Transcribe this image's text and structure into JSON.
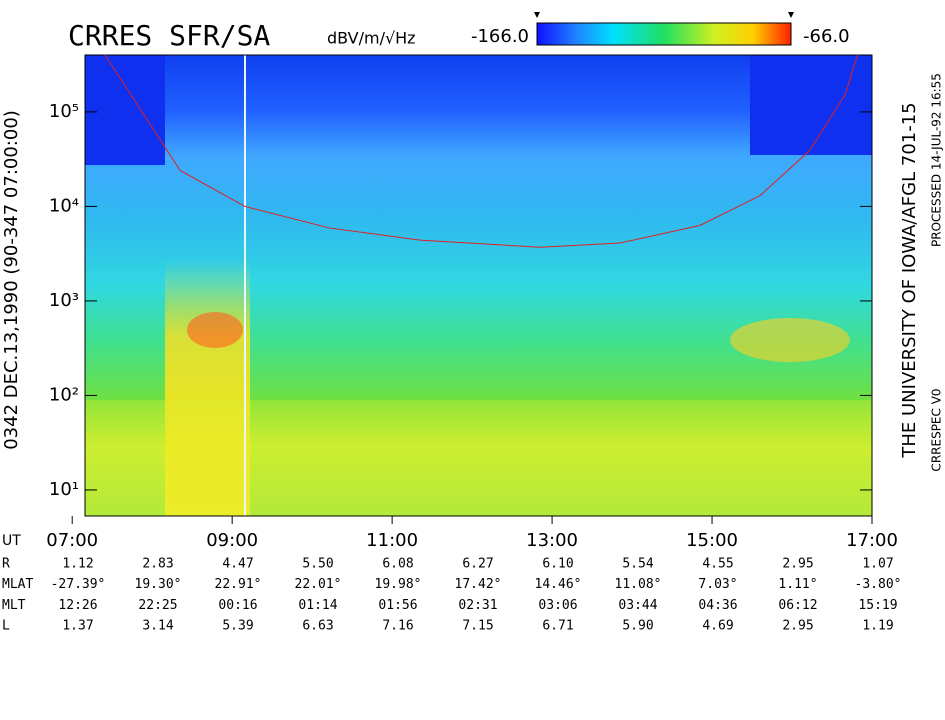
{
  "chart_data": {
    "type": "spectrogram",
    "title": "CRRES SFR/SA",
    "left_label": "0342  DEC.13,1990  (90-347 07:00:00)",
    "right_label": "THE UNIVERSITY OF IOWA/AFGL 701-15",
    "processed_label": "PROCESSED 14-JUL-92 16:55",
    "version_label": "CRRESPEC V0",
    "x_axis_label": "UT",
    "log_y": true,
    "xlim": [
      7.16,
      17
    ],
    "xticks": [
      {
        "value": 7,
        "label": "07:00"
      },
      {
        "value": 9,
        "label": "09:00"
      },
      {
        "value": 11,
        "label": "11:00"
      },
      {
        "value": 13,
        "label": "13:00"
      },
      {
        "value": 15,
        "label": "15:00"
      },
      {
        "value": 17,
        "label": "17:00"
      }
    ],
    "ylim": [
      5.3,
      400000
    ],
    "yticks": [
      {
        "value": 10,
        "label": "10¹"
      },
      {
        "value": 100,
        "label": "10²"
      },
      {
        "value": 1000,
        "label": "10³"
      },
      {
        "value": 10000,
        "label": "10⁴"
      },
      {
        "value": 100000,
        "label": "10⁵"
      }
    ],
    "colorbar": {
      "label": "dBV/m/√Hz",
      "zlim": [
        {
          "value": -166,
          "label": "-166.0"
        },
        {
          "value": -66,
          "label": "-66.0"
        }
      ]
    },
    "series": [
      {
        "color": "#e02020",
        "x": [
          7.41,
          8.35,
          9.16,
          10.22,
          11.35,
          12.85,
          13.85,
          14.85,
          15.6,
          16.22,
          16.66,
          16.82
        ],
        "values": [
          400000,
          24000,
          10000,
          5900,
          4400,
          3700,
          4100,
          6300,
          13000,
          39000,
          150000,
          400000
        ]
      }
    ]
  },
  "ephemeris": {
    "rows": [
      {
        "label": "R",
        "values": [
          "1.12",
          "2.83",
          "4.47",
          "5.50",
          "6.08",
          "6.27",
          "6.10",
          "5.54",
          "4.55",
          "2.95",
          "1.07"
        ]
      },
      {
        "label": "MLAT",
        "values": [
          "-27.39°",
          "19.30°",
          "22.91°",
          "22.01°",
          "19.98°",
          "17.42°",
          "14.46°",
          "11.08°",
          "7.03°",
          "1.11°",
          "-3.80°"
        ]
      },
      {
        "label": "MLT",
        "values": [
          "12:26",
          "22:25",
          "00:16",
          "01:14",
          "01:56",
          "02:31",
          "03:06",
          "03:44",
          "04:36",
          "06:12",
          "15:19"
        ]
      },
      {
        "label": "L",
        "values": [
          "1.37",
          "3.14",
          "5.39",
          "6.63",
          "7.16",
          "7.15",
          "6.71",
          "5.90",
          "4.69",
          "2.95",
          "1.19"
        ]
      }
    ]
  }
}
